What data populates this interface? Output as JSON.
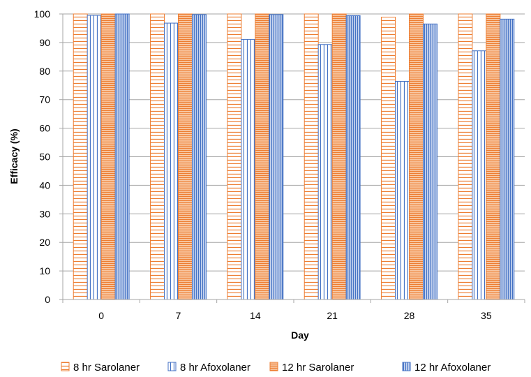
{
  "chart_data": {
    "type": "bar",
    "title": "",
    "xlabel": "Day",
    "ylabel": "Efficacy (%)",
    "ylim": [
      0,
      100
    ],
    "yticks": [
      0,
      10,
      20,
      30,
      40,
      50,
      60,
      70,
      80,
      90,
      100
    ],
    "grid": true,
    "legend_position": "bottom",
    "categories": [
      "0",
      "7",
      "14",
      "21",
      "28",
      "35"
    ],
    "series": [
      {
        "name": "8 hr Sarolaner",
        "values": [
          100,
          100,
          100,
          100,
          98.9,
          100
        ],
        "color": "#ED7D31",
        "pattern": "horizontal",
        "fill": "light"
      },
      {
        "name": "8 hr Afoxolaner",
        "values": [
          99.5,
          96.8,
          91.1,
          89.3,
          76.4,
          87.1
        ],
        "color": "#4472C4",
        "pattern": "vertical",
        "fill": "light"
      },
      {
        "name": "12 hr Sarolaner",
        "values": [
          100,
          100,
          100,
          100,
          100,
          100
        ],
        "color": "#ED7D31",
        "pattern": "horizontal",
        "fill": "dense"
      },
      {
        "name": "12 hr Afoxolaner",
        "values": [
          100,
          99.8,
          99.8,
          99.4,
          96.5,
          98.2
        ],
        "color": "#4472C4",
        "pattern": "vertical",
        "fill": "dense"
      }
    ]
  }
}
